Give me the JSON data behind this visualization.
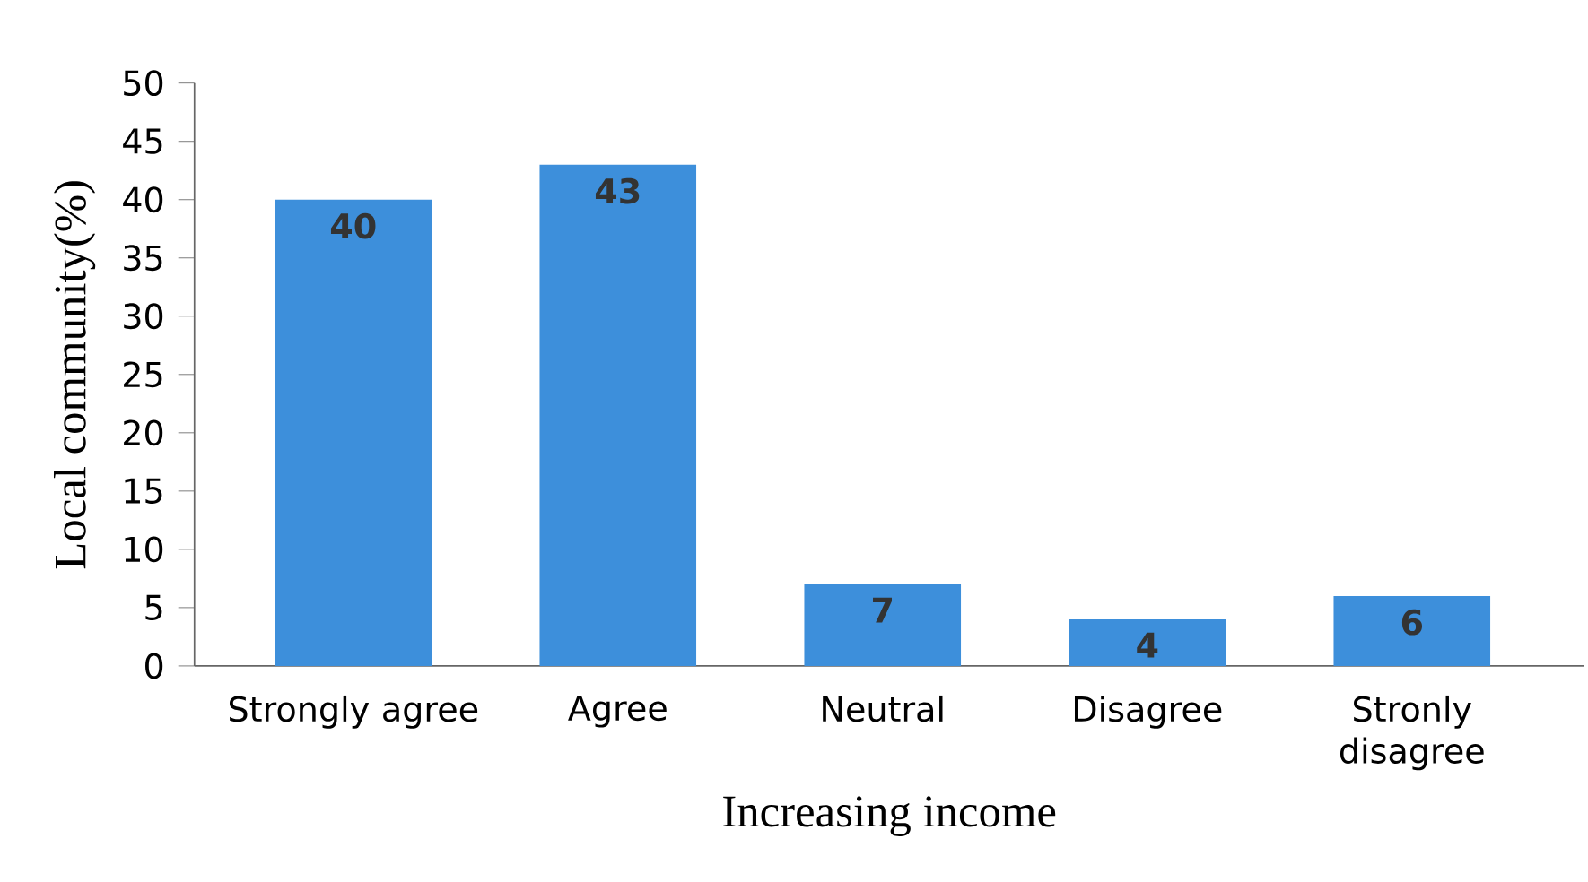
{
  "chart_data": {
    "type": "bar",
    "xlabel": "Increasing income",
    "ylabel": "Local community(%)",
    "categories": [
      "Strongly agree",
      "Agree",
      "Neutral",
      "Disagree",
      "Stronly disagree"
    ],
    "values": [
      40,
      43,
      7,
      4,
      6
    ],
    "color": "#3d8fdb",
    "data_labels": true,
    "ylim": [
      0,
      50
    ],
    "yticks": [
      0,
      5,
      10,
      15,
      20,
      25,
      30,
      35,
      40,
      45,
      50
    ],
    "grid": false
  }
}
